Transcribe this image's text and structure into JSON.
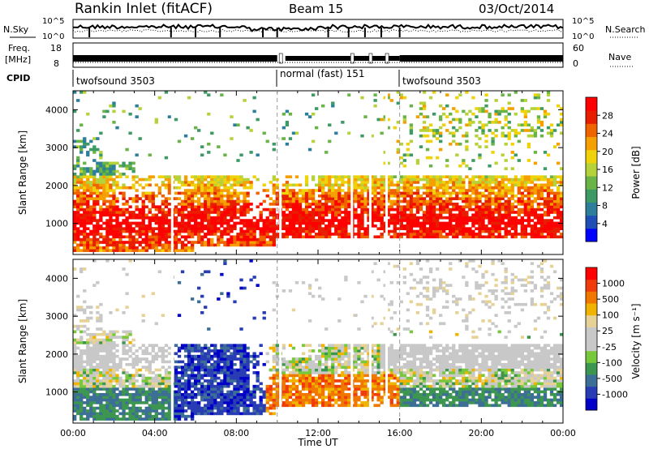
{
  "header": {
    "station": "Rankin Inlet (fitACF)",
    "beam": "Beam 15",
    "date": "03/Oct/2014"
  },
  "top_panels": {
    "nsky_label": "N.Sky",
    "nsky_ticks": [
      "10^5",
      "10^0"
    ],
    "nsearch_label": "N.Search",
    "nsearch_ticks": [
      "10^5",
      "10^0"
    ],
    "freq_label_1": "Freq.",
    "freq_label_2": "[MHz]",
    "freq_ticks": [
      "18",
      "8"
    ],
    "nave_label": "Nave",
    "nave_ticks": [
      "60",
      "0"
    ],
    "cpid_label": "CPID",
    "cpid_segments": [
      {
        "label": "twofsound 3503",
        "start_hour": 0,
        "end_hour": 10
      },
      {
        "label": "normal (fast) 151",
        "start_hour": 10,
        "end_hour": 16
      },
      {
        "label": "twofsound 3503",
        "start_hour": 16,
        "end_hour": 24
      }
    ]
  },
  "colors": {
    "power_scale": [
      "#0000ff",
      "#1f4fb4",
      "#2d7e9a",
      "#3e9a64",
      "#6ab447",
      "#b5d23a",
      "#f0d20a",
      "#f5a000",
      "#f06400",
      "#e81e00",
      "#ff0000"
    ],
    "velocity_scale": [
      "#ff0000",
      "#f03c0a",
      "#f07800",
      "#f0b400",
      "#e6d296",
      "#c8c8c8",
      "#c8c8c8",
      "#78c83c",
      "#3c9650",
      "#3c6e96",
      "#283cb4",
      "#0000c8"
    ]
  },
  "chart_data": [
    {
      "type": "heatmap",
      "name": "power",
      "xlabel": "",
      "ylabel": "Slant Range [km]",
      "xlim": [
        0,
        24
      ],
      "ylim": [
        180,
        4500
      ],
      "yticks": [
        1000,
        2000,
        3000,
        4000
      ],
      "colorbar_label": "Power [dB]",
      "colorbar_ticks": [
        "28",
        "24",
        "20",
        "16",
        "12",
        "8",
        "4"
      ],
      "colorbar_range": [
        0,
        30
      ],
      "dashed_time_markers_hours": [
        10,
        16
      ]
    },
    {
      "type": "heatmap",
      "name": "velocity",
      "xlabel": "Time UT",
      "ylabel": "Slant Range [km]",
      "xlim": [
        0,
        24
      ],
      "ylim": [
        180,
        4500
      ],
      "yticks": [
        1000,
        2000,
        3000,
        4000
      ],
      "xtick_labels": [
        "00:00",
        "04:00",
        "08:00",
        "12:00",
        "16:00",
        "20:00",
        "00:00"
      ],
      "colorbar_label": "Velocity [m s⁻¹]",
      "colorbar_ticks": [
        "1000",
        "500",
        "100",
        "25",
        "-25",
        "-100",
        "-500",
        "-1000"
      ],
      "dashed_time_markers_hours": [
        10,
        16
      ]
    }
  ]
}
